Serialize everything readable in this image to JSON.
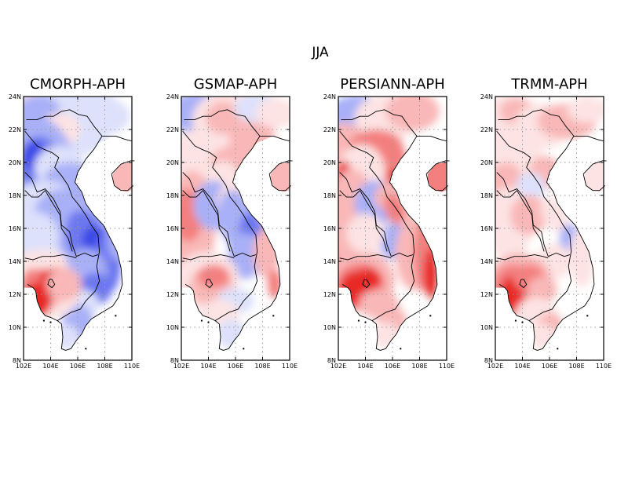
{
  "figure_title": "JJA",
  "colors": {
    "blue_strong": "#3a4ae6",
    "blue_mid": "#6d78f0",
    "blue_light": "#a9b0f7",
    "blue_pale": "#dde1fb",
    "red_pale": "#fde3e3",
    "red_light": "#f9b7b7",
    "red_mid": "#f3807f",
    "red_strong": "#e82a28",
    "grid": "#9a9a9a",
    "border": "#000000"
  },
  "panels": [
    {
      "title": "CMORPH-APH",
      "pattern": "cmorph",
      "x_ticks": [
        "102E",
        "104E",
        "106E",
        "108E",
        "110E"
      ],
      "y_ticks": [
        "24N",
        "22N",
        "20N",
        "18N",
        "16N",
        "14N",
        "12N",
        "10N",
        "8N"
      ]
    },
    {
      "title": "GSMAP-APH",
      "pattern": "gsmap",
      "x_ticks": [
        "102E",
        "104E",
        "106E",
        "108E",
        "110E"
      ],
      "y_ticks": [
        "24N",
        "22N",
        "20N",
        "18N",
        "16N",
        "14N",
        "12N",
        "10N",
        "8N"
      ]
    },
    {
      "title": "PERSIANN-APH",
      "pattern": "persiann",
      "x_ticks": [
        "102E",
        "104E",
        "106E",
        "108E",
        "110E"
      ],
      "y_ticks": [
        "24N",
        "22N",
        "20N",
        "18N",
        "16N",
        "14N",
        "12N",
        "10N",
        "8N"
      ]
    },
    {
      "title": "TRMM-APH",
      "pattern": "trmm",
      "x_ticks": [
        "102E",
        "104E",
        "106E",
        "108E",
        "110E"
      ],
      "y_ticks": [
        "24N",
        "22N",
        "20N",
        "18N",
        "16N",
        "14N",
        "12N",
        "10N",
        "8N"
      ]
    }
  ]
}
